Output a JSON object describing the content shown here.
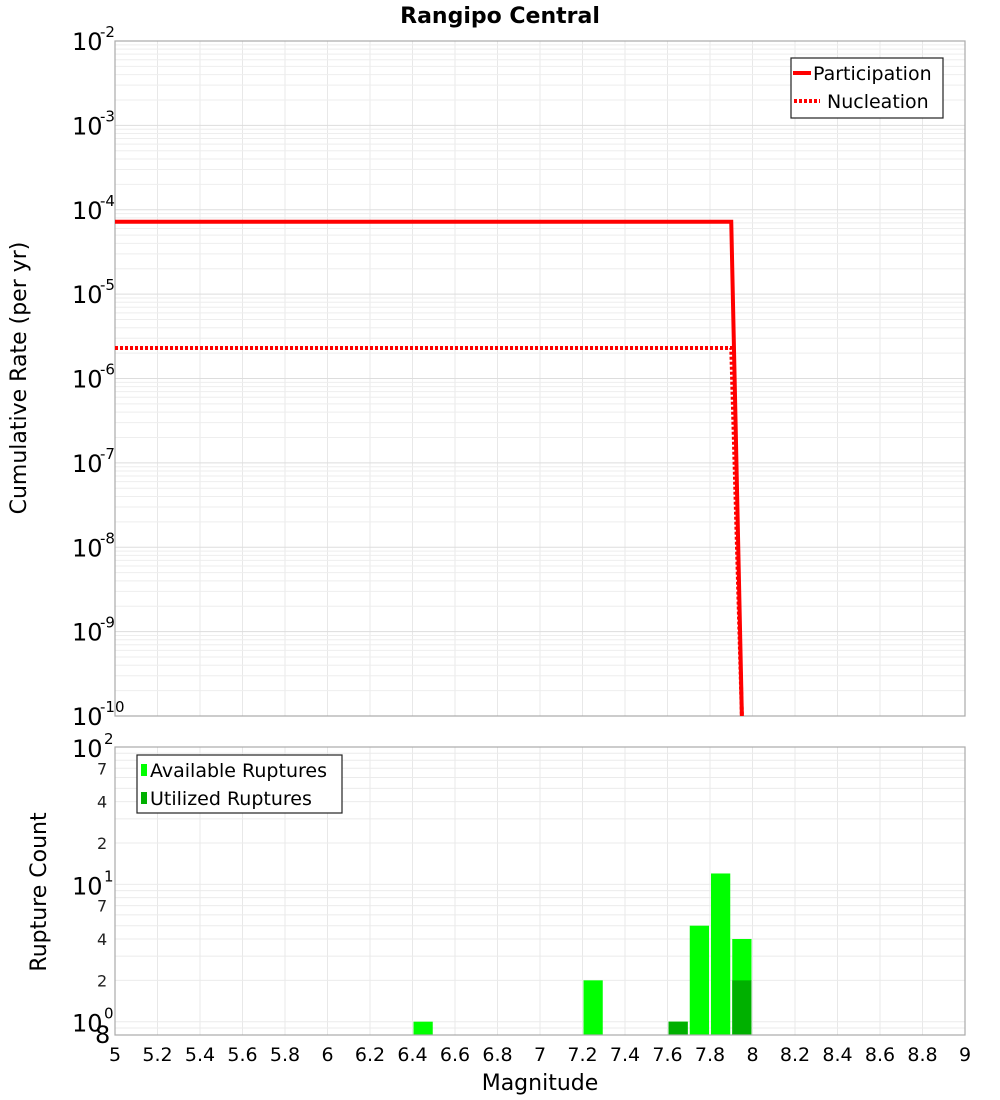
{
  "chart_data": [
    {
      "type": "line",
      "title": "Rangipo Central",
      "xlabel": "Magnitude",
      "ylabel": "Cumulative Rate (per yr)",
      "xlim": [
        5,
        9
      ],
      "ylim": [
        1e-10,
        0.01
      ],
      "yscale": "log",
      "grid": true,
      "legend_position": "top-right",
      "y_tick_labels": [
        "10^-2",
        "10^-3",
        "10^-4",
        "10^-5",
        "10^-6",
        "10^-7",
        "10^-8",
        "10^-9",
        "10^-10"
      ],
      "series": [
        {
          "name": "Participation",
          "style": "solid",
          "color": "#ff0000",
          "x": [
            5.0,
            7.9,
            7.95
          ],
          "y": [
            7.2e-05,
            7.2e-05,
            1e-10
          ]
        },
        {
          "name": "Nucleation",
          "style": "dotted",
          "color": "#ff0000",
          "x": [
            5.0,
            7.9,
            7.95
          ],
          "y": [
            2.3e-06,
            2.3e-06,
            1e-10
          ]
        }
      ]
    },
    {
      "type": "bar",
      "xlabel": "Magnitude",
      "ylabel": "Rupture Count",
      "xlim": [
        5,
        9
      ],
      "ylim": [
        0.8,
        100
      ],
      "yscale": "log",
      "grid": true,
      "legend_position": "top-left",
      "x_tick_labels": [
        "5",
        "5.2",
        "5.4",
        "5.6",
        "5.8",
        "6",
        "6.2",
        "6.4",
        "6.6",
        "6.8",
        "7",
        "7.2",
        "7.4",
        "7.6",
        "7.8",
        "8",
        "8.2",
        "8.4",
        "8.6",
        "8.8",
        "9"
      ],
      "y_tick_labels": [
        "10^2",
        "7",
        "4",
        "2",
        "10^1",
        "7",
        "4",
        "2",
        "10^0",
        "8"
      ],
      "bin_width": 0.1,
      "categories": [
        6.45,
        7.25,
        7.65,
        7.75,
        7.85,
        7.95
      ],
      "series": [
        {
          "name": "Available Ruptures",
          "color": "#00ff00",
          "values": [
            1,
            2,
            1,
            5,
            12,
            4
          ]
        },
        {
          "name": "Utilized Ruptures",
          "color": "#00b000",
          "values": [
            0,
            0,
            1,
            0,
            0,
            2
          ]
        }
      ]
    }
  ],
  "labels": {
    "title": "Rangipo Central",
    "top_ylabel": "Cumulative Rate (per yr)",
    "bottom_ylabel": "Rupture Count",
    "xlabel": "Magnitude",
    "legend_top": [
      "Participation",
      "Nucleation"
    ],
    "legend_bottom": [
      "Available Ruptures",
      "Utilized Ruptures"
    ]
  }
}
